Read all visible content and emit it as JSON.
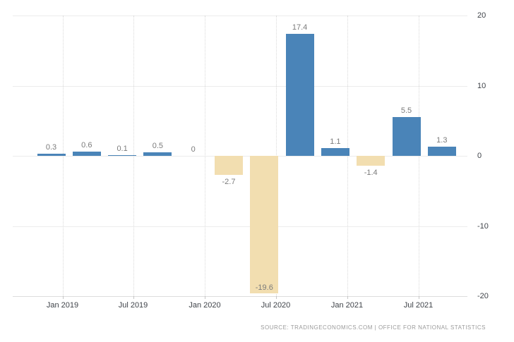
{
  "source": {
    "text": "SOURCE: TRADINGECONOMICS.COM | OFFICE FOR NATIONAL STATISTICS"
  },
  "chart_data": {
    "type": "bar",
    "title": "",
    "x_tick_labels": [
      "Jan 2019",
      "Jul 2019",
      "Jan 2020",
      "Jul 2020",
      "Jan 2021",
      "Jul 2021"
    ],
    "y_ticks": [
      20,
      10,
      0,
      -10,
      -20
    ],
    "y_tick_labels": [
      "20",
      "10",
      "0",
      "-10",
      "-20"
    ],
    "values": [
      0.3,
      0.6,
      0.1,
      0.5,
      0,
      -2.7,
      -19.6,
      17.4,
      1.1,
      -1.4,
      5.5,
      1.3
    ],
    "data_labels": [
      "0.3",
      "0.6",
      "0.1",
      "0.5",
      "0",
      "-2.7",
      "-19.6",
      "17.4",
      "1.1",
      "-1.4",
      "5.5",
      "1.3"
    ],
    "ylim": [
      -20,
      20
    ],
    "grid": true,
    "legend_position": "none",
    "colors": {
      "positive_bar": "#4a84b8",
      "negative_bar": "#f2deb0",
      "value_label": "#7b7b7b",
      "axis_label": "#3f4349",
      "h_gridline": "#ececec",
      "v_gridline": "#d9d9d9",
      "source_text": "#9b9b9b",
      "background": "#ffffff"
    }
  }
}
